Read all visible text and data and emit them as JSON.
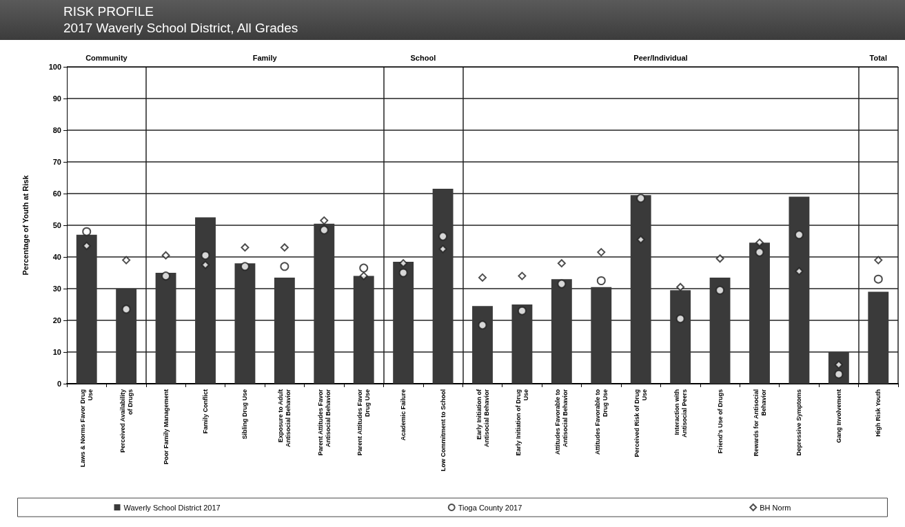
{
  "chart_data": {
    "type": "bar",
    "title": "RISK PROFILE",
    "subtitle": "2017 Waverly School District, All Grades",
    "ylabel": "Percentage of Youth at Risk",
    "categories": [
      "Laws & Norms Favor Drug Use",
      "Perceived Availability of Drugs",
      "Poor Family Management",
      "Family Conflict",
      "Sibling Drug Use",
      "Exposure to Adult Antisocial Behavior",
      "Parent Attitudes Favor Antisocial Behavior",
      "Parent Attitudes Favor Drug Use",
      "Academic Failure",
      "Low Commitment to School",
      "Early Initiation of Antisocial Behavior",
      "Early Initiation of Drug Use",
      "Attitudes Favorable to Antisocial Behavior",
      "Attitudes Favorable to Drug Use",
      "Perceived Risk of Drug Use",
      "Interaction with Antisocial Peers",
      "Friend's Use of Drugs",
      "Rewards for Antisocial Behavior",
      "Depressive Symptoms",
      "Gang Involvement",
      "High Risk Youth"
    ],
    "series": [
      {
        "name": "Waverly School District 2017",
        "type": "bar",
        "color": "#3a3a3a",
        "values": [
          47,
          30,
          35,
          52.5,
          38,
          33.5,
          50.5,
          34,
          38.5,
          61.5,
          24.5,
          25,
          33,
          30.5,
          59.5,
          29.5,
          33.5,
          44.5,
          59,
          10,
          29
        ]
      },
      {
        "name": "Tioga County 2017",
        "type": "scatter",
        "marker": "circle",
        "color": "#ffffff",
        "values": [
          48,
          23.5,
          34,
          40.5,
          37,
          37,
          48.5,
          36.5,
          35,
          46.5,
          18.5,
          23,
          31.5,
          32.5,
          58.5,
          20.5,
          29.5,
          41.5,
          47,
          3,
          33
        ]
      },
      {
        "name": "BH Norm",
        "type": "scatter",
        "marker": "diamond",
        "color": "#ffffff",
        "values": [
          43.5,
          39,
          40.5,
          37.5,
          43,
          43,
          51.5,
          34,
          38,
          42.5,
          33.5,
          34,
          38,
          41.5,
          45.5,
          30.5,
          39.5,
          44.5,
          35.5,
          6,
          39
        ]
      }
    ],
    "ylim": [
      0,
      100
    ],
    "yticks": [
      0,
      10,
      20,
      30,
      40,
      50,
      60,
      70,
      80,
      90,
      100
    ],
    "grid": "y",
    "legend": "bottom",
    "annotations": [
      "Community",
      "Family",
      "School",
      "Peer/Individual",
      "Total"
    ]
  }
}
